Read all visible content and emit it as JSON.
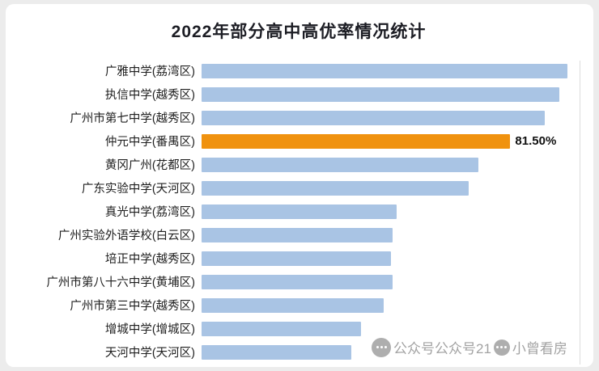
{
  "chart_data": {
    "type": "bar",
    "orientation": "horizontal",
    "title": "2022年部分高中高优率情况统计",
    "categories": [
      "广雅中学(荔湾区)",
      "执信中学(越秀区)",
      "广州市第七中学(越秀区)",
      "仲元中学(番禺区)",
      "黄冈广州(花都区)",
      "广东实验中学(天河区)",
      "真光中学(荔湾区)",
      "广州实验外语学校(白云区)",
      "培正中学(越秀区)",
      "广州市第八十六中学(黄埔区)",
      "广州市第三中学(越秀区)",
      "增城中学(增城区)",
      "天河中学(天河区)"
    ],
    "values": [
      96.5,
      94.5,
      90.5,
      81.5,
      73.0,
      70.5,
      51.5,
      50.5,
      50.0,
      50.5,
      48.0,
      42.0,
      39.5
    ],
    "value_labels": [
      "",
      "",
      "",
      "81.50%",
      "",
      "",
      "",
      "",
      "",
      "",
      "",
      "",
      ""
    ],
    "highlight_index": 3,
    "bar_color": "#a9c4e4",
    "highlight_color": "#f0920f",
    "xlim": [
      0,
      100
    ],
    "grid": "right-edge-line-only",
    "legend": "none"
  },
  "watermark": {
    "text1": "公众号公众号21",
    "text2": "小曾看房",
    "icon1": "wechat-official-account-icon",
    "icon2": "wechat-official-account-icon"
  }
}
